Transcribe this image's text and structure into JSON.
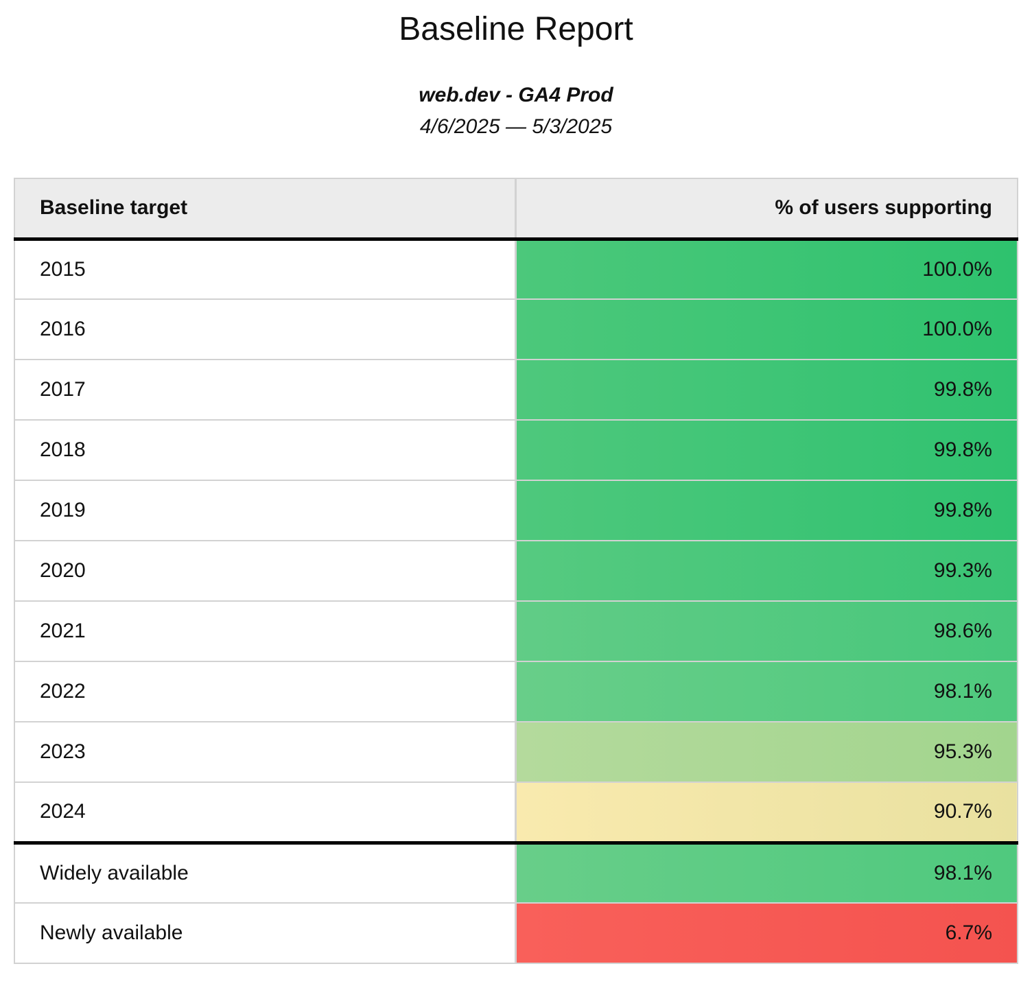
{
  "header": {
    "title": "Baseline Report",
    "property": "web.dev - GA4 Prod",
    "date_range": "4/6/2025 — 5/3/2025"
  },
  "colors": {
    "header_bg": "#ececec",
    "grid_line": "#d2d2d2",
    "section_divider": "#000000"
  },
  "table": {
    "columns": [
      "Baseline target",
      "% of users supporting"
    ],
    "year_rows": [
      {
        "target": "2015",
        "value": "100.0%",
        "color_left": "#4cc87b",
        "color_right": "#2ec26e"
      },
      {
        "target": "2016",
        "value": "100.0%",
        "color_left": "#4cc87b",
        "color_right": "#2ec26e"
      },
      {
        "target": "2017",
        "value": "99.8%",
        "color_left": "#4ec87c",
        "color_right": "#30c270"
      },
      {
        "target": "2018",
        "value": "99.8%",
        "color_left": "#4ec87c",
        "color_right": "#30c270"
      },
      {
        "target": "2019",
        "value": "99.8%",
        "color_left": "#4ec87c",
        "color_right": "#30c270"
      },
      {
        "target": "2020",
        "value": "99.3%",
        "color_left": "#56ca80",
        "color_right": "#3ac475"
      },
      {
        "target": "2021",
        "value": "98.6%",
        "color_left": "#61cc86",
        "color_right": "#47c77b"
      },
      {
        "target": "2022",
        "value": "98.1%",
        "color_left": "#68ce89",
        "color_right": "#4fc97e"
      },
      {
        "target": "2023",
        "value": "95.3%",
        "color_left": "#b4da9c",
        "color_right": "#a2d58e"
      },
      {
        "target": "2024",
        "value": "90.7%",
        "color_left": "#f9eaae",
        "color_right": "#e9e1a0"
      }
    ],
    "summary_rows": [
      {
        "target": "Widely available",
        "value": "98.1%",
        "color_left": "#68ce89",
        "color_right": "#4fc97e"
      },
      {
        "target": "Newly available",
        "value": "6.7%",
        "color_left": "#f9605a",
        "color_right": "#f4534f"
      }
    ]
  },
  "chart_data": {
    "type": "table",
    "title": "Baseline Report",
    "subtitle": "web.dev - GA4 Prod",
    "date_range": "4/6/2025 — 5/3/2025",
    "columns": [
      "Baseline target",
      "% of users supporting"
    ],
    "categories": [
      "2015",
      "2016",
      "2017",
      "2018",
      "2019",
      "2020",
      "2021",
      "2022",
      "2023",
      "2024",
      "Widely available",
      "Newly available"
    ],
    "values": [
      100.0,
      100.0,
      99.8,
      99.8,
      99.8,
      99.3,
      98.6,
      98.1,
      95.3,
      90.7,
      98.1,
      6.7
    ],
    "value_unit": "%",
    "color_scale": "green (high) to yellow (~90) to red (low)"
  }
}
